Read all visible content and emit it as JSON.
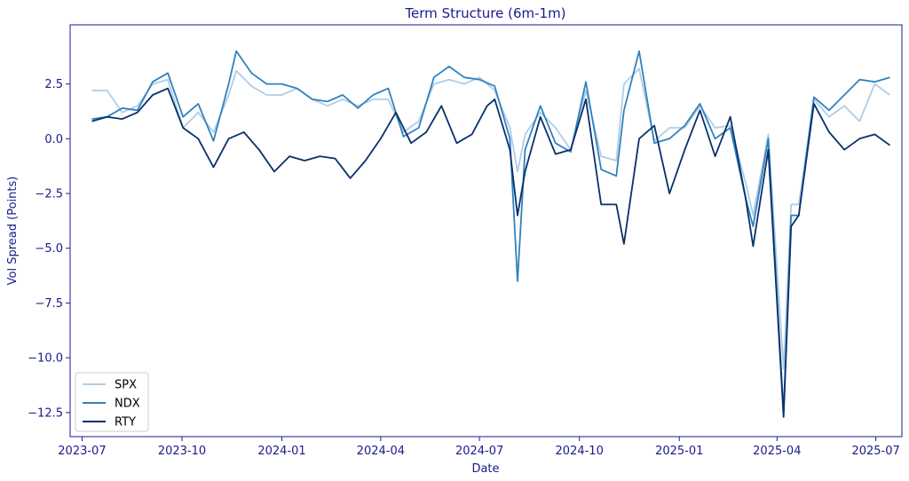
{
  "chart_data": {
    "type": "line",
    "title": "Term Structure (6m-1m)",
    "xlabel": "Date",
    "ylabel": "Vol Spread (Points)",
    "xlim": [
      "2023-06-20",
      "2025-07-25"
    ],
    "ylim": [
      -13.6,
      5.2
    ],
    "x_ticks": [
      {
        "date": "2023-07-01",
        "label": "2023-07"
      },
      {
        "date": "2023-10-01",
        "label": "2023-10"
      },
      {
        "date": "2024-01-01",
        "label": "2024-01"
      },
      {
        "date": "2024-04-01",
        "label": "2024-04"
      },
      {
        "date": "2024-07-01",
        "label": "2024-07"
      },
      {
        "date": "2024-10-01",
        "label": "2024-10"
      },
      {
        "date": "2025-01-01",
        "label": "2025-01"
      },
      {
        "date": "2025-04-01",
        "label": "2025-04"
      },
      {
        "date": "2025-07-01",
        "label": "2025-07"
      }
    ],
    "y_ticks": [
      {
        "value": 2.5,
        "label": "2.5"
      },
      {
        "value": 0,
        "label": "0.0"
      },
      {
        "value": -2.5,
        "label": "−2.5"
      },
      {
        "value": -5,
        "label": "−5.0"
      },
      {
        "value": -7.5,
        "label": "−7.5"
      },
      {
        "value": -10,
        "label": "−10.0"
      },
      {
        "value": -12.5,
        "label": "−12.5"
      }
    ],
    "grid": false,
    "legend": "lower-left",
    "series": [
      {
        "name": "SPX",
        "color": "#aecde6",
        "x": [
          "2023-07-10",
          "2023-07-24",
          "2023-08-07",
          "2023-08-21",
          "2023-09-04",
          "2023-09-18",
          "2023-10-02",
          "2023-10-16",
          "2023-10-30",
          "2023-11-13",
          "2023-11-20",
          "2023-12-04",
          "2023-12-18",
          "2024-01-01",
          "2024-01-15",
          "2024-01-29",
          "2024-02-12",
          "2024-02-26",
          "2024-03-11",
          "2024-03-25",
          "2024-04-08",
          "2024-04-22",
          "2024-05-06",
          "2024-05-20",
          "2024-06-03",
          "2024-06-17",
          "2024-07-01",
          "2024-07-15",
          "2024-07-29",
          "2024-08-05",
          "2024-08-12",
          "2024-08-26",
          "2024-09-09",
          "2024-09-23",
          "2024-10-07",
          "2024-10-21",
          "2024-11-04",
          "2024-11-11",
          "2024-11-25",
          "2024-12-09",
          "2024-12-23",
          "2025-01-06",
          "2025-01-20",
          "2025-02-03",
          "2025-02-17",
          "2025-03-03",
          "2025-03-10",
          "2025-03-24",
          "2025-04-07",
          "2025-04-14",
          "2025-04-21",
          "2025-05-05",
          "2025-05-19",
          "2025-06-02",
          "2025-06-16",
          "2025-06-30",
          "2025-07-14"
        ],
        "y": [
          2.2,
          2.2,
          1.2,
          1.5,
          2.5,
          2.7,
          0.5,
          1.2,
          0.3,
          2.0,
          3.1,
          2.4,
          2.0,
          2.0,
          2.3,
          1.8,
          1.5,
          1.8,
          1.5,
          1.8,
          1.8,
          0.3,
          0.8,
          2.5,
          2.7,
          2.5,
          2.8,
          2.2,
          0.5,
          -1.5,
          0.2,
          1.2,
          0.5,
          -0.5,
          2.2,
          -0.8,
          -1.0,
          2.5,
          3.2,
          -0.1,
          0.5,
          0.5,
          1.5,
          0.5,
          0.6,
          -2.0,
          -3.5,
          0.2,
          -10.5,
          -3.0,
          -3.0,
          1.8,
          1.0,
          1.5,
          0.8,
          2.5,
          2.0
        ]
      },
      {
        "name": "NDX",
        "color": "#3182bd",
        "x": [
          "2023-07-10",
          "2023-07-24",
          "2023-08-07",
          "2023-08-21",
          "2023-09-04",
          "2023-09-18",
          "2023-10-02",
          "2023-10-16",
          "2023-10-30",
          "2023-11-13",
          "2023-11-20",
          "2023-12-04",
          "2023-12-18",
          "2024-01-01",
          "2024-01-15",
          "2024-01-29",
          "2024-02-12",
          "2024-02-26",
          "2024-03-11",
          "2024-03-25",
          "2024-04-08",
          "2024-04-22",
          "2024-05-06",
          "2024-05-20",
          "2024-06-03",
          "2024-06-17",
          "2024-07-01",
          "2024-07-15",
          "2024-07-29",
          "2024-08-05",
          "2024-08-12",
          "2024-08-26",
          "2024-09-09",
          "2024-09-23",
          "2024-10-07",
          "2024-10-21",
          "2024-11-04",
          "2024-11-11",
          "2024-11-25",
          "2024-12-09",
          "2024-12-23",
          "2025-01-06",
          "2025-01-20",
          "2025-02-03",
          "2025-02-17",
          "2025-03-03",
          "2025-03-10",
          "2025-03-24",
          "2025-04-07",
          "2025-04-14",
          "2025-04-21",
          "2025-05-05",
          "2025-05-19",
          "2025-06-02",
          "2025-06-16",
          "2025-06-30",
          "2025-07-14"
        ],
        "y": [
          0.9,
          1.0,
          1.4,
          1.3,
          2.6,
          3.0,
          1.0,
          1.6,
          -0.1,
          2.5,
          4.0,
          3.0,
          2.5,
          2.5,
          2.3,
          1.8,
          1.7,
          2.0,
          1.4,
          2.0,
          2.3,
          0.1,
          0.5,
          2.8,
          3.3,
          2.8,
          2.7,
          2.4,
          0.0,
          -6.5,
          -0.5,
          1.5,
          -0.2,
          -0.6,
          2.6,
          -1.4,
          -1.7,
          1.3,
          4.0,
          -0.2,
          0.0,
          0.6,
          1.6,
          0.0,
          0.5,
          -2.7,
          -4.0,
          0.0,
          -12.5,
          -3.5,
          -3.5,
          1.9,
          1.3,
          2.0,
          2.7,
          2.6,
          2.8
        ]
      },
      {
        "name": "RTY",
        "color": "#08306b",
        "x": [
          "2023-07-10",
          "2023-07-24",
          "2023-08-07",
          "2023-08-21",
          "2023-09-04",
          "2023-09-18",
          "2023-10-02",
          "2023-10-16",
          "2023-10-30",
          "2023-11-13",
          "2023-11-27",
          "2023-12-11",
          "2023-12-25",
          "2024-01-08",
          "2024-01-22",
          "2024-02-05",
          "2024-02-19",
          "2024-03-04",
          "2024-03-18",
          "2024-04-01",
          "2024-04-15",
          "2024-04-29",
          "2024-05-13",
          "2024-05-27",
          "2024-06-10",
          "2024-06-24",
          "2024-07-08",
          "2024-07-15",
          "2024-07-29",
          "2024-08-05",
          "2024-08-12",
          "2024-08-26",
          "2024-09-09",
          "2024-09-23",
          "2024-10-07",
          "2024-10-21",
          "2024-11-04",
          "2024-11-11",
          "2024-11-25",
          "2024-12-09",
          "2024-12-23",
          "2025-01-06",
          "2025-01-20",
          "2025-02-03",
          "2025-02-17",
          "2025-03-03",
          "2025-03-10",
          "2025-03-24",
          "2025-04-07",
          "2025-04-14",
          "2025-04-21",
          "2025-05-05",
          "2025-05-19",
          "2025-06-02",
          "2025-06-16",
          "2025-06-30",
          "2025-07-14"
        ],
        "y": [
          0.8,
          1.0,
          0.9,
          1.2,
          2.0,
          2.3,
          0.5,
          0.0,
          -1.3,
          0.0,
          0.3,
          -0.5,
          -1.5,
          -0.8,
          -1.0,
          -0.8,
          -0.9,
          -1.8,
          -1.0,
          0.0,
          1.2,
          -0.2,
          0.3,
          1.5,
          -0.2,
          0.2,
          1.5,
          1.8,
          -0.5,
          -3.5,
          -1.5,
          1.0,
          -0.7,
          -0.5,
          1.8,
          -3.0,
          -3.0,
          -4.8,
          0.0,
          0.6,
          -2.5,
          -0.5,
          1.3,
          -0.8,
          1.0,
          -2.7,
          -4.9,
          -0.5,
          -12.7,
          -4.0,
          -3.5,
          1.6,
          0.3,
          -0.5,
          0.0,
          0.2,
          -0.3
        ]
      }
    ]
  }
}
